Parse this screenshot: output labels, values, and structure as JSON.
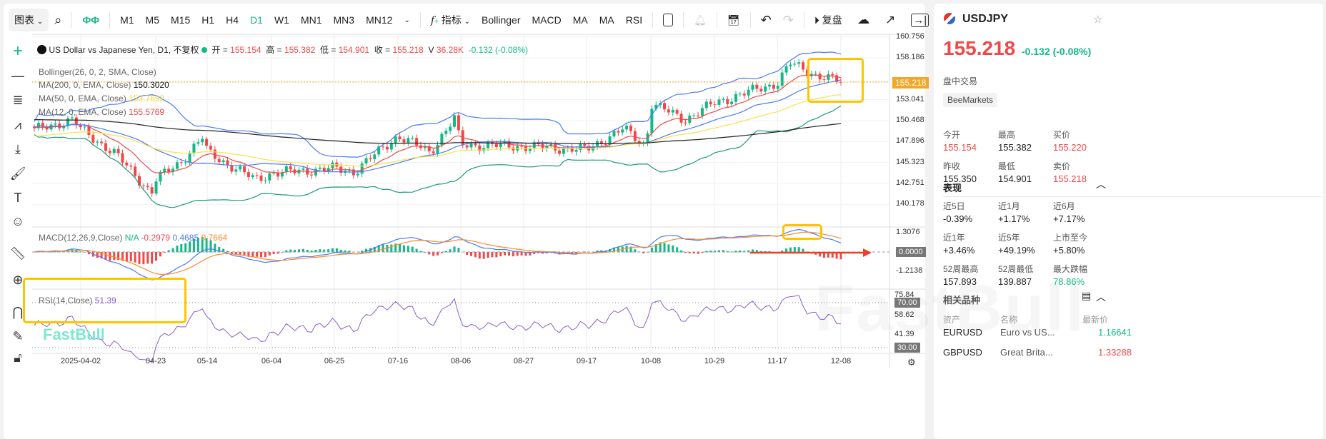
{
  "toolbar": {
    "chart_menu": "图表",
    "timeframes": [
      "M1",
      "M5",
      "M15",
      "H1",
      "H4",
      "D1",
      "W1",
      "MN1",
      "MN3",
      "MN12"
    ],
    "active_timeframe": "D1",
    "indicators_label": "指标",
    "indicator_shortcuts": [
      "Bollinger",
      "MACD",
      "MA",
      "MA",
      "RSI"
    ],
    "replay_label": "复盘"
  },
  "legend": {
    "title": "US Dollar vs Japanese Yen, D1, 不复权",
    "open_label": "开",
    "open": "155.154",
    "high_label": "高",
    "high": "155.382",
    "low_label": "低",
    "low": "154.901",
    "close_label": "收",
    "close": "155.218",
    "volume_label": "V",
    "volume": "36.28K",
    "change": "-0.132 (-0.08%)",
    "bollinger": "Bollinger(26, 0, 2, SMA, Close)",
    "ma200": "MA(200, 0, EMA, Close)",
    "ma200_val": "150.3020",
    "ma50": "MA(50, 0, EMA, Close)",
    "ma50_val": "153.7692",
    "ma12": "MA(12, 0, EMA, Close)",
    "ma12_val": "155.5769",
    "macd": "MACD(12,26,9,Close)",
    "macd_hist": "N/A",
    "macd_a": "-0.2979",
    "macd_b": "0.4685",
    "macd_c": "0.7664",
    "rsi": "RSI(14,Close)",
    "rsi_val": "51.39"
  },
  "colors": {
    "up": "#12b886",
    "down": "#f04848",
    "accent": "#00c08b",
    "bb": "#4a7cf5",
    "ma12": "#f04848",
    "ma50": "#f7e34a",
    "ma200": "#222222",
    "bb_lower": "#1d9a7a",
    "macd": "#4a7cf5",
    "signal": "#ff8a2a",
    "rsi": "#8a5cd0",
    "highlight": "#ffc400",
    "price_tag": "#f5a623"
  },
  "price_axis": [
    "160.756",
    "158.186",
    "155.218",
    "153.041",
    "150.468",
    "147.896",
    "145.323",
    "142.751",
    "140.178"
  ],
  "current_price_tag": "155.218",
  "macd_axis": [
    "1.3076",
    "0.0000",
    "-1.2138"
  ],
  "rsi_axis": [
    "75.84",
    "70.00",
    "58.62",
    "41.39",
    "30.00"
  ],
  "date_axis": [
    "2025-04-02",
    "04-23",
    "05-14",
    "06-04",
    "06-25",
    "07-16",
    "08-06",
    "08-27",
    "09-17",
    "10-08",
    "10-29",
    "11-17",
    "12-08"
  ],
  "watermark": "FastBull",
  "chart_data": {
    "type": "candlestick",
    "approx_close_keypoints": [
      [
        "03-17",
        149.3
      ],
      [
        "03-26",
        150.6
      ],
      [
        "04-02",
        149.4
      ],
      [
        "04-10",
        146.5
      ],
      [
        "04-21",
        141.6
      ],
      [
        "04-23",
        143.2
      ],
      [
        "05-01",
        145.3
      ],
      [
        "05-12",
        148.4
      ],
      [
        "05-14",
        146.6
      ],
      [
        "05-23",
        143.2
      ],
      [
        "06-04",
        144.0
      ],
      [
        "06-13",
        144.3
      ],
      [
        "06-25",
        144.6
      ],
      [
        "07-03",
        144.2
      ],
      [
        "07-16",
        148.6
      ],
      [
        "07-24",
        146.6
      ],
      [
        "07-31",
        150.7
      ],
      [
        "08-06",
        147.5
      ],
      [
        "08-27",
        147.3
      ],
      [
        "09-17",
        146.9
      ],
      [
        "09-26",
        149.5
      ],
      [
        "10-01",
        147.3
      ],
      [
        "10-08",
        152.6
      ],
      [
        "10-16",
        150.6
      ],
      [
        "10-29",
        152.6
      ],
      [
        "11-05",
        153.8
      ],
      [
        "11-17",
        155.1
      ],
      [
        "11-20",
        157.5
      ],
      [
        "11-28",
        156.1
      ],
      [
        "12-08",
        155.2
      ]
    ]
  },
  "side": {
    "symbol": "USDJPY",
    "price": "155.218",
    "change": "-0.132",
    "change_pct": "(-0.08%)",
    "session": "盘中交易",
    "broker": "BeeMarkets",
    "quote": [
      {
        "label": "今开",
        "value": "155.154",
        "color": "red"
      },
      {
        "label": "最高",
        "value": "155.382",
        "color": ""
      },
      {
        "label": "买价",
        "value": "155.220",
        "color": "red"
      },
      {
        "label": "昨收",
        "value": "155.350",
        "color": ""
      },
      {
        "label": "最低",
        "value": "154.901",
        "color": ""
      },
      {
        "label": "卖价",
        "value": "155.218",
        "color": "red"
      }
    ],
    "perf_title": "表现",
    "perf": [
      {
        "label": "近5日",
        "value": "-0.39%",
        "color": ""
      },
      {
        "label": "近1月",
        "value": "+1.17%",
        "color": ""
      },
      {
        "label": "近6月",
        "value": "+7.17%",
        "color": ""
      },
      {
        "label": "近1年",
        "value": "+3.46%",
        "color": ""
      },
      {
        "label": "近5年",
        "value": "+49.19%",
        "color": ""
      },
      {
        "label": "上市至今",
        "value": "+5.80%",
        "color": ""
      },
      {
        "label": "52周最高",
        "value": "157.893",
        "color": ""
      },
      {
        "label": "52周最低",
        "value": "139.887",
        "color": ""
      },
      {
        "label": "最大跌幅",
        "value": "78.86%",
        "color": "green"
      }
    ],
    "related_title": "相关品种",
    "col_asset": "资产",
    "col_name": "名称",
    "col_price": "最新价",
    "related": [
      {
        "asset": "EURUSD",
        "name": "Euro vs US...",
        "price": "1.16641",
        "color": "green"
      },
      {
        "asset": "GBPUSD",
        "name": "Great Brita...",
        "price": "1.33288",
        "color": "red"
      }
    ]
  }
}
